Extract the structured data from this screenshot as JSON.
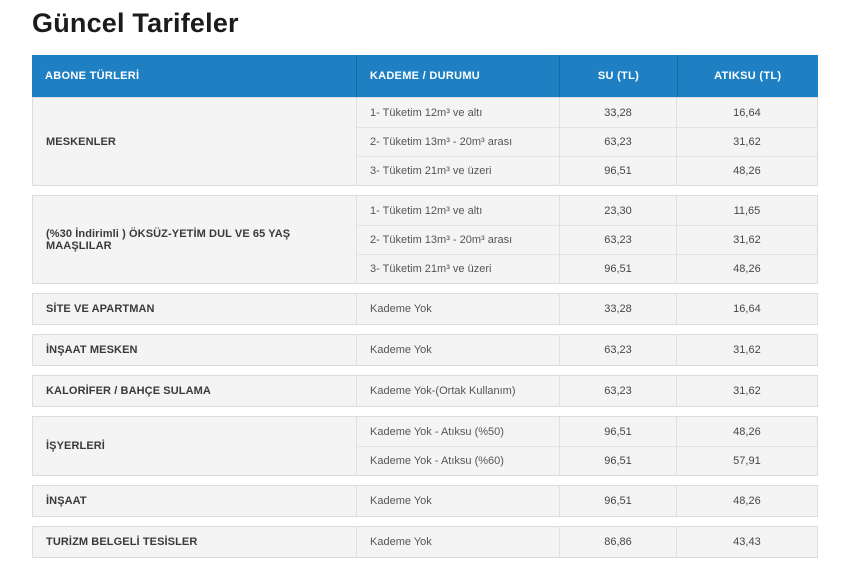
{
  "page": {
    "title": "Güncel Tarifeler"
  },
  "colors": {
    "header_bg": "#1e80c3",
    "header_divider": "#19699f",
    "header_text": "#ffffff",
    "row_bg": "#f4f4f4",
    "block_border": "#dcdcdc",
    "row_divider": "#e3e3e3",
    "title_text": "#1b1b1b"
  },
  "table": {
    "columns": {
      "abone": "ABONE TÜRLERİ",
      "kademe": "KADEME / DURUMU",
      "su": "SU (TL)",
      "atiksu": "ATIKSU (TL)"
    },
    "groups": [
      {
        "label": "MESKENLER",
        "rows": [
          {
            "kademe": "1- Tüketim 12m³ ve altı",
            "su": "33,28",
            "atiksu": "16,64"
          },
          {
            "kademe": "2- Tüketim 13m³ - 20m³ arası",
            "su": "63,23",
            "atiksu": "31,62"
          },
          {
            "kademe": "3- Tüketim 21m³ ve üzeri",
            "su": "96,51",
            "atiksu": "48,26"
          }
        ]
      },
      {
        "label": "(%30 İndirimli ) ÖKSÜZ-YETİM DUL VE 65 YAŞ MAAŞLILAR",
        "rows": [
          {
            "kademe": "1- Tüketim 12m³ ve altı",
            "su": "23,30",
            "atiksu": "11,65"
          },
          {
            "kademe": "2- Tüketim 13m³ - 20m³ arası",
            "su": "63,23",
            "atiksu": "31,62"
          },
          {
            "kademe": "3- Tüketim 21m³ ve üzeri",
            "su": "96,51",
            "atiksu": "48,26"
          }
        ]
      },
      {
        "label": "SİTE VE APARTMAN",
        "rows": [
          {
            "kademe": "Kademe Yok",
            "su": "33,28",
            "atiksu": "16,64"
          }
        ]
      },
      {
        "label": "İNŞAAT MESKEN",
        "rows": [
          {
            "kademe": "Kademe Yok",
            "su": "63,23",
            "atiksu": "31,62"
          }
        ]
      },
      {
        "label": "KALORİFER / BAHÇE SULAMA",
        "rows": [
          {
            "kademe": "Kademe Yok-(Ortak Kullanım)",
            "su": "63,23",
            "atiksu": "31,62"
          }
        ]
      },
      {
        "label": "İŞYERLERİ",
        "rows": [
          {
            "kademe": "Kademe Yok - Atıksu (%50)",
            "su": "96,51",
            "atiksu": "48,26"
          },
          {
            "kademe": "Kademe Yok - Atıksu (%60)",
            "su": "96,51",
            "atiksu": "57,91"
          }
        ]
      },
      {
        "label": "İNŞAAT",
        "rows": [
          {
            "kademe": "Kademe Yok",
            "su": "96,51",
            "atiksu": "48,26"
          }
        ]
      },
      {
        "label": "TURİZM BELGELİ TESİSLER",
        "rows": [
          {
            "kademe": "Kademe Yok",
            "su": "86,86",
            "atiksu": "43,43"
          }
        ]
      }
    ]
  }
}
